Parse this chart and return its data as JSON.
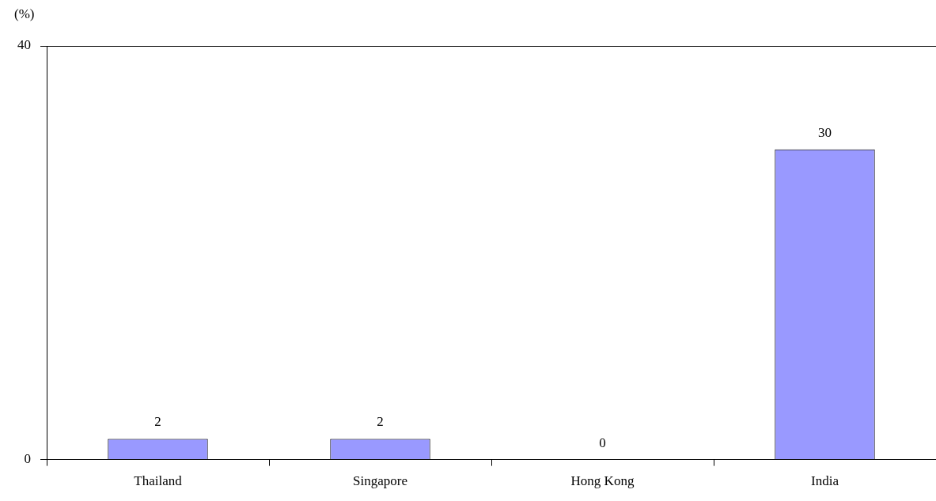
{
  "chart_data": {
    "type": "bar",
    "ylabel": "(%)",
    "categories": [
      "Thailand",
      "Singapore",
      "Hong Kong",
      "India"
    ],
    "values": [
      2,
      2,
      0,
      30
    ],
    "color": "#9999ff",
    "ylim": [
      0,
      40
    ],
    "yticks": [
      0,
      40
    ],
    "data_labels": true
  }
}
